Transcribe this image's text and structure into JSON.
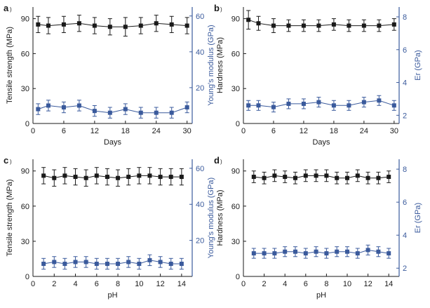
{
  "colors": {
    "left": "#1a1a1a",
    "right": "#3a5a9c"
  },
  "chart_data": [
    {
      "type": "line",
      "panel_label": "a",
      "xlabel": "Days",
      "x_ticks": [
        0,
        6,
        12,
        18,
        24,
        30
      ],
      "xlim": [
        0,
        31
      ],
      "y_left": {
        "label": "Tensile strength (MPa)",
        "lim": [
          0,
          100
        ],
        "ticks": [
          0,
          30,
          60,
          90
        ]
      },
      "y_right": {
        "label": "Young's modulus (GPa)",
        "lim": [
          0,
          65
        ],
        "ticks": [
          20,
          40,
          60
        ]
      },
      "series": [
        {
          "name": "Tensile strength",
          "axis": "left",
          "x": [
            1,
            3,
            6,
            9,
            12,
            15,
            18,
            21,
            24,
            27,
            30
          ],
          "y": [
            85,
            84,
            85,
            86,
            84,
            83,
            83,
            84,
            86,
            85,
            84
          ],
          "err": [
            7,
            7,
            7,
            7,
            7,
            7,
            8,
            7,
            7,
            7,
            7
          ]
        },
        {
          "name": "Young's modulus",
          "axis": "right",
          "x": [
            1,
            3,
            6,
            9,
            12,
            15,
            18,
            21,
            24,
            27,
            30
          ],
          "y": [
            8,
            10,
            9,
            10,
            7,
            6,
            8,
            6,
            6,
            6,
            9
          ],
          "err": [
            3,
            3,
            3,
            3,
            3,
            3,
            3,
            3,
            3,
            3,
            3
          ]
        }
      ]
    },
    {
      "type": "line",
      "panel_label": "b",
      "xlabel": "Days",
      "x_ticks": [
        0,
        6,
        12,
        18,
        24,
        30
      ],
      "xlim": [
        0,
        31
      ],
      "y_left": {
        "label": "Hardness (MPa)",
        "lim": [
          0,
          100
        ],
        "ticks": [
          0,
          30,
          60,
          90
        ]
      },
      "y_right": {
        "label": "Er (GPa)",
        "lim": [
          1.5,
          8.6
        ],
        "ticks": [
          2,
          4,
          6,
          8
        ]
      },
      "series": [
        {
          "name": "Hardness",
          "axis": "left",
          "x": [
            1,
            3,
            6,
            9,
            12,
            15,
            18,
            21,
            24,
            27,
            30
          ],
          "y": [
            89,
            86,
            84,
            84,
            84,
            84,
            85,
            84,
            84,
            84,
            85
          ],
          "err": [
            8,
            6,
            6,
            5,
            5,
            5,
            5,
            5,
            5,
            5,
            5
          ]
        },
        {
          "name": "Er",
          "axis": "right",
          "x": [
            1,
            3,
            6,
            9,
            12,
            15,
            18,
            21,
            24,
            27,
            30
          ],
          "y": [
            2.6,
            2.6,
            2.5,
            2.7,
            2.7,
            2.8,
            2.6,
            2.6,
            2.8,
            2.9,
            2.6
          ],
          "err": [
            0.3,
            0.3,
            0.3,
            0.3,
            0.3,
            0.3,
            0.3,
            0.3,
            0.3,
            0.3,
            0.3
          ]
        }
      ]
    },
    {
      "type": "line",
      "panel_label": "c",
      "xlabel": "pH",
      "x_ticks": [
        0,
        2,
        4,
        6,
        8,
        10,
        12,
        14
      ],
      "xlim": [
        0,
        15
      ],
      "y_left": {
        "label": "Tensile strength (MPa)",
        "lim": [
          0,
          100
        ],
        "ticks": [
          0,
          30,
          60,
          90
        ]
      },
      "y_right": {
        "label": "Young's modulus (GPa)",
        "lim": [
          0,
          65
        ],
        "ticks": [
          20,
          40,
          60
        ]
      },
      "series": [
        {
          "name": "Tensile strength",
          "axis": "left",
          "x": [
            1,
            2,
            3,
            4,
            5,
            6,
            7,
            8,
            9,
            10,
            11,
            12,
            13,
            14
          ],
          "y": [
            86,
            84,
            86,
            85,
            84,
            86,
            85,
            84,
            85,
            86,
            86,
            85,
            85,
            85
          ],
          "err": [
            7,
            7,
            7,
            7,
            7,
            7,
            7,
            7,
            7,
            7,
            7,
            7,
            7,
            7
          ]
        },
        {
          "name": "Young's modulus",
          "axis": "right",
          "x": [
            1,
            2,
            3,
            4,
            5,
            6,
            7,
            8,
            9,
            10,
            11,
            12,
            13,
            14
          ],
          "y": [
            7,
            8,
            7,
            8,
            8,
            7,
            7,
            7,
            8,
            7,
            9,
            8,
            7,
            7
          ],
          "err": [
            3,
            3,
            3,
            3,
            3,
            3,
            3,
            3,
            3,
            3,
            3,
            3,
            3,
            3
          ]
        }
      ]
    },
    {
      "type": "line",
      "panel_label": "d",
      "xlabel": "pH",
      "x_ticks": [
        0,
        2,
        4,
        6,
        8,
        10,
        12,
        14
      ],
      "xlim": [
        0,
        15
      ],
      "y_left": {
        "label": "Hardness (MPa)",
        "lim": [
          0,
          100
        ],
        "ticks": [
          0,
          30,
          60,
          90
        ]
      },
      "y_right": {
        "label": "Er (GPa)",
        "lim": [
          1.5,
          8.6
        ],
        "ticks": [
          2,
          4,
          6,
          8
        ]
      },
      "series": [
        {
          "name": "Hardness",
          "axis": "left",
          "x": [
            1,
            2,
            3,
            4,
            5,
            6,
            7,
            8,
            9,
            10,
            11,
            12,
            13,
            14
          ],
          "y": [
            85,
            84,
            86,
            85,
            84,
            86,
            86,
            86,
            84,
            84,
            86,
            84,
            84,
            85
          ],
          "err": [
            5,
            5,
            5,
            5,
            5,
            5,
            5,
            5,
            5,
            5,
            5,
            5,
            5,
            5
          ]
        },
        {
          "name": "Er",
          "axis": "right",
          "x": [
            1,
            2,
            3,
            4,
            5,
            6,
            7,
            8,
            9,
            10,
            11,
            12,
            13,
            14
          ],
          "y": [
            2.9,
            2.9,
            2.9,
            3.0,
            3.0,
            2.9,
            3.0,
            2.9,
            3.0,
            3.0,
            2.9,
            3.1,
            3.0,
            2.9
          ],
          "err": [
            0.3,
            0.3,
            0.3,
            0.3,
            0.3,
            0.3,
            0.3,
            0.3,
            0.3,
            0.3,
            0.3,
            0.3,
            0.3,
            0.3
          ]
        }
      ]
    }
  ]
}
